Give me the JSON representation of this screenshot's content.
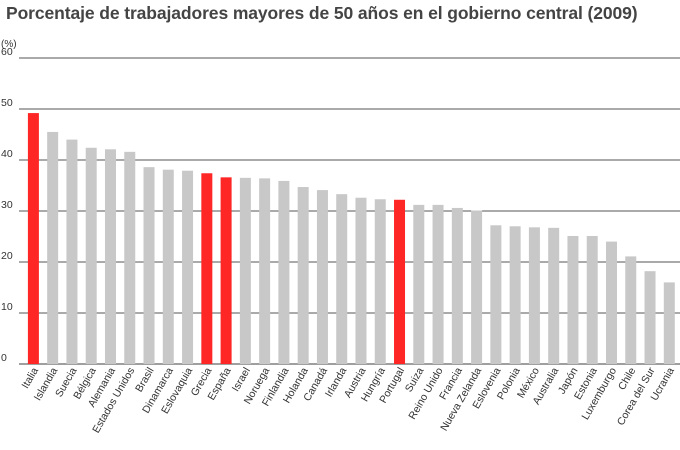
{
  "chart_data": {
    "type": "bar",
    "title": "Porcentaje de trabajadores mayores de 50 años en el gobierno central (2009)",
    "ylabel": "(%)",
    "xlabel": "",
    "ylim": [
      0,
      60
    ],
    "yticks": [
      0,
      10,
      20,
      30,
      40,
      50,
      60
    ],
    "grid": true,
    "categories": [
      "Italia",
      "Islandia",
      "Suecia",
      "Bélgica",
      "Alemania",
      "Estados Unidos",
      "Brasil",
      "Dinamarca",
      "Eslovaquia",
      "Grecia",
      "España",
      "Israel",
      "Noruega",
      "Finlandia",
      "Holanda",
      "Canadá",
      "Irlanda",
      "Austria",
      "Hungría",
      "Portugal",
      "Suiza",
      "Reino Unido",
      "Francia",
      "Nueva Zelanda",
      "Eslovenia",
      "Polonia",
      "México",
      "Australia",
      "Japón",
      "Estonia",
      "Luxemburgo",
      "Chile",
      "Corea del Sur",
      "Ucrania"
    ],
    "values": [
      49.2,
      45.5,
      44.0,
      42.4,
      42.1,
      41.6,
      38.6,
      38.1,
      37.9,
      37.4,
      36.6,
      36.5,
      36.4,
      35.9,
      34.7,
      34.1,
      33.3,
      32.6,
      32.3,
      32.2,
      31.2,
      31.2,
      30.6,
      30.1,
      27.2,
      27.0,
      26.8,
      26.7,
      25.1,
      25.1,
      24.0,
      21.1,
      18.2,
      16.0
    ],
    "highlighted": [
      "Italia",
      "Grecia",
      "España",
      "Portugal"
    ],
    "colors": {
      "highlight": "#ff2626",
      "normal": "#c8c8c8",
      "grid": "#555555",
      "axis": "#666666"
    }
  }
}
